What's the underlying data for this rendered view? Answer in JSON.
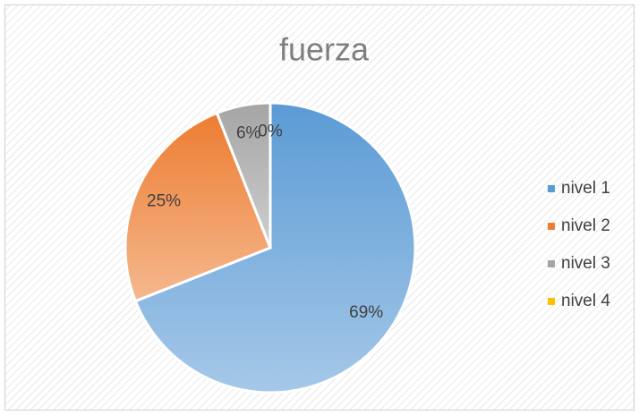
{
  "chart_data": {
    "type": "pie",
    "title": "fuerza",
    "categories": [
      "nivel 1",
      "nivel 2",
      "nivel 3",
      "nivel 4"
    ],
    "values": [
      69,
      25,
      6,
      0
    ],
    "value_labels": [
      "69%",
      "25%",
      "6%",
      "0%"
    ],
    "colors": [
      "#5b9bd5",
      "#ed7d31",
      "#a5a5a5",
      "#ffc000"
    ],
    "legend": "right"
  }
}
